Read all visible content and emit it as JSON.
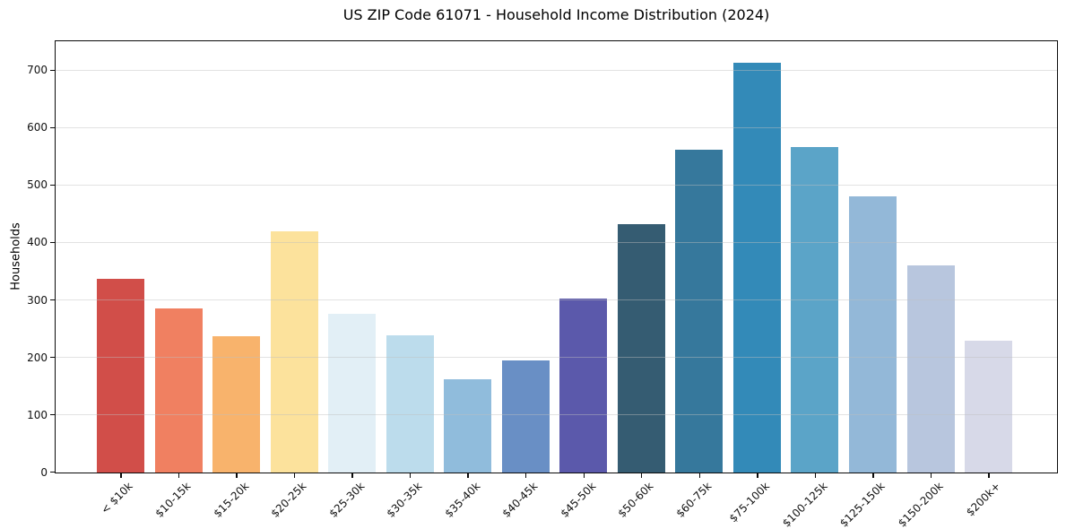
{
  "chart_data": {
    "type": "bar",
    "title": "US ZIP Code 61071 - Household Income Distribution (2024)",
    "xlabel": "",
    "ylabel": "Households",
    "ylim": [
      0,
      750
    ],
    "yticks": [
      0,
      100,
      200,
      300,
      400,
      500,
      600,
      700
    ],
    "grid": "horizontal",
    "legend": "none",
    "categories": [
      "< $10k",
      "$10-15k",
      "$15-20k",
      "$20-25k",
      "$25-30k",
      "$30-35k",
      "$35-40k",
      "$40-45k",
      "$45-50k",
      "$50-60k",
      "$60-75k",
      "$75-100k",
      "$100-125k",
      "$125-150k",
      "$150-200k",
      "$200k+"
    ],
    "values": [
      337,
      286,
      237,
      420,
      277,
      239,
      162,
      196,
      303,
      433,
      563,
      714,
      567,
      481,
      361,
      230
    ],
    "bar_colors": [
      "#d14e49",
      "#f08061",
      "#f8b36c",
      "#fce29c",
      "#e2eff6",
      "#bcdcec",
      "#90bcdc",
      "#698fc5",
      "#5b59ab",
      "#355c72",
      "#36789c",
      "#338ab8",
      "#5ba4c8",
      "#93b8d8",
      "#b8c6de",
      "#d7d9e8"
    ],
    "frame_color": "#0a0a0a",
    "gridline_color": "#e6e6e6",
    "background_color": "#ffffff"
  }
}
